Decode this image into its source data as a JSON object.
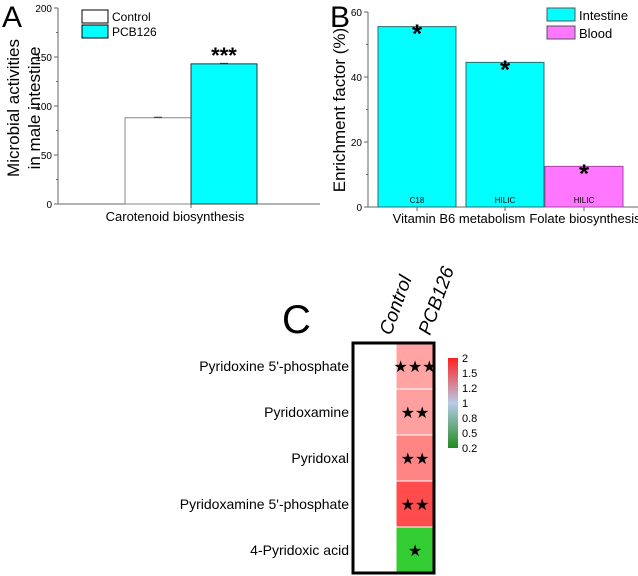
{
  "chart_data": [
    {
      "panel": "A",
      "type": "bar",
      "categories": [
        "Carotenoid biosynthesis"
      ],
      "series": [
        {
          "name": "Control",
          "values": [
            88
          ],
          "color": "#ffffff"
        },
        {
          "name": "PCB126",
          "values": [
            143
          ],
          "color": "#00ffff"
        }
      ],
      "annotations": [
        {
          "series": "PCB126",
          "category": "Carotenoid biosynthesis",
          "text": "***"
        }
      ],
      "ylabel": "Microbial activities\nin male intestine",
      "ylabel_lines": [
        "Microbial activities",
        "in male intestine"
      ],
      "xlabel": "",
      "ylim": [
        0,
        200
      ],
      "yticks": [
        0,
        50,
        100,
        150,
        200
      ],
      "legend": "top-left",
      "grid": false
    },
    {
      "panel": "B",
      "type": "bar",
      "categories": [
        "Vitamin B6 metabolism (C18)",
        "Vitamin B6 metabolism (HILIC)",
        "Folate biosynthesis (HILIC)"
      ],
      "bars": [
        {
          "group": "Intestine",
          "value": 55.5,
          "inner_label": "C18",
          "star": "*"
        },
        {
          "group": "Intestine",
          "value": 44.5,
          "inner_label": "HILIC",
          "star": "*"
        },
        {
          "group": "Blood",
          "value": 12.5,
          "inner_label": "HILIC",
          "star": "*"
        }
      ],
      "xtick_labels": [
        "Vitamin B6 metabolism",
        "Folate biosynthesis"
      ],
      "series": [
        {
          "name": "Intestine",
          "color": "#00ffff"
        },
        {
          "name": "Blood",
          "color": "#ff77ff"
        }
      ],
      "ylabel": "Enrichment factor (%)",
      "xlabel": "",
      "ylim": [
        0,
        60
      ],
      "yticks": [
        0,
        20,
        40,
        60
      ],
      "legend": "top-right",
      "grid": false
    },
    {
      "panel": "C",
      "type": "heatmap",
      "columns": [
        "Control",
        "PCB126"
      ],
      "rows": [
        "Pyridoxine 5'-phosphate",
        "Pyridoxamine",
        "Pyridoxal",
        "Pyridoxamine 5'-phosphate",
        "4-Pyridoxic acid"
      ],
      "values": [
        [
          1,
          1.4
        ],
        [
          1,
          1.4
        ],
        [
          1,
          1.5
        ],
        [
          1,
          1.8
        ],
        [
          1,
          0.3
        ]
      ],
      "cell_colors": [
        [
          "#ffffff",
          "#ffa3a3"
        ],
        [
          "#ffffff",
          "#ffa0a0"
        ],
        [
          "#ffffff",
          "#ff8585"
        ],
        [
          "#ffffff",
          "#ff4d4d"
        ],
        [
          "#ffffff",
          "#33cc33"
        ]
      ],
      "significance": [
        "★★★",
        "★★",
        "★★",
        "★★",
        "★"
      ],
      "colorbar": {
        "ticks": [
          "2",
          "1.5",
          "1.2",
          "1",
          "0.8",
          "0.5",
          "0.2"
        ],
        "colors": [
          "#ff2020",
          "#b7cbe8",
          "#228b22"
        ]
      }
    }
  ],
  "panel_labels": {
    "a": "A",
    "b": "B",
    "c": "C"
  }
}
